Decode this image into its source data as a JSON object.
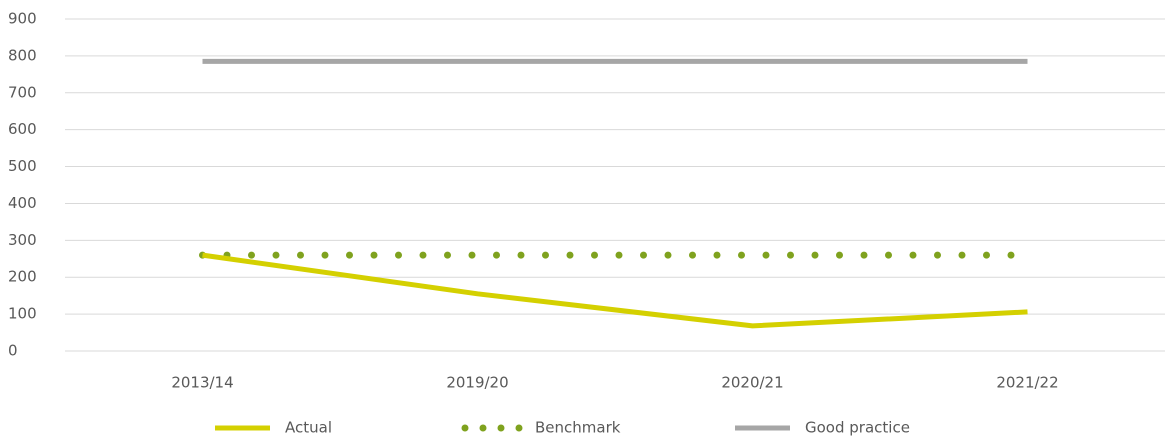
{
  "chart_data": {
    "type": "line",
    "categories": [
      "2013/14",
      "2019/20",
      "2020/21",
      "2021/22"
    ],
    "series": [
      {
        "name": "Actual",
        "color": "#d4d000",
        "line_style": "solid",
        "values": [
          260,
          155,
          68,
          106
        ]
      },
      {
        "name": "Benchmark",
        "color": "#7fa21e",
        "line_style": "dotted",
        "values": [
          260,
          260,
          260,
          260
        ]
      },
      {
        "name": "Good practice",
        "color": "#a6a6a6",
        "line_style": "solid",
        "values": [
          785,
          785,
          785,
          785
        ]
      }
    ],
    "ylim": [
      0,
      900
    ],
    "yticks": [
      0,
      100,
      200,
      300,
      400,
      500,
      600,
      700,
      800,
      900
    ],
    "grid": true,
    "legend": "bottom"
  }
}
